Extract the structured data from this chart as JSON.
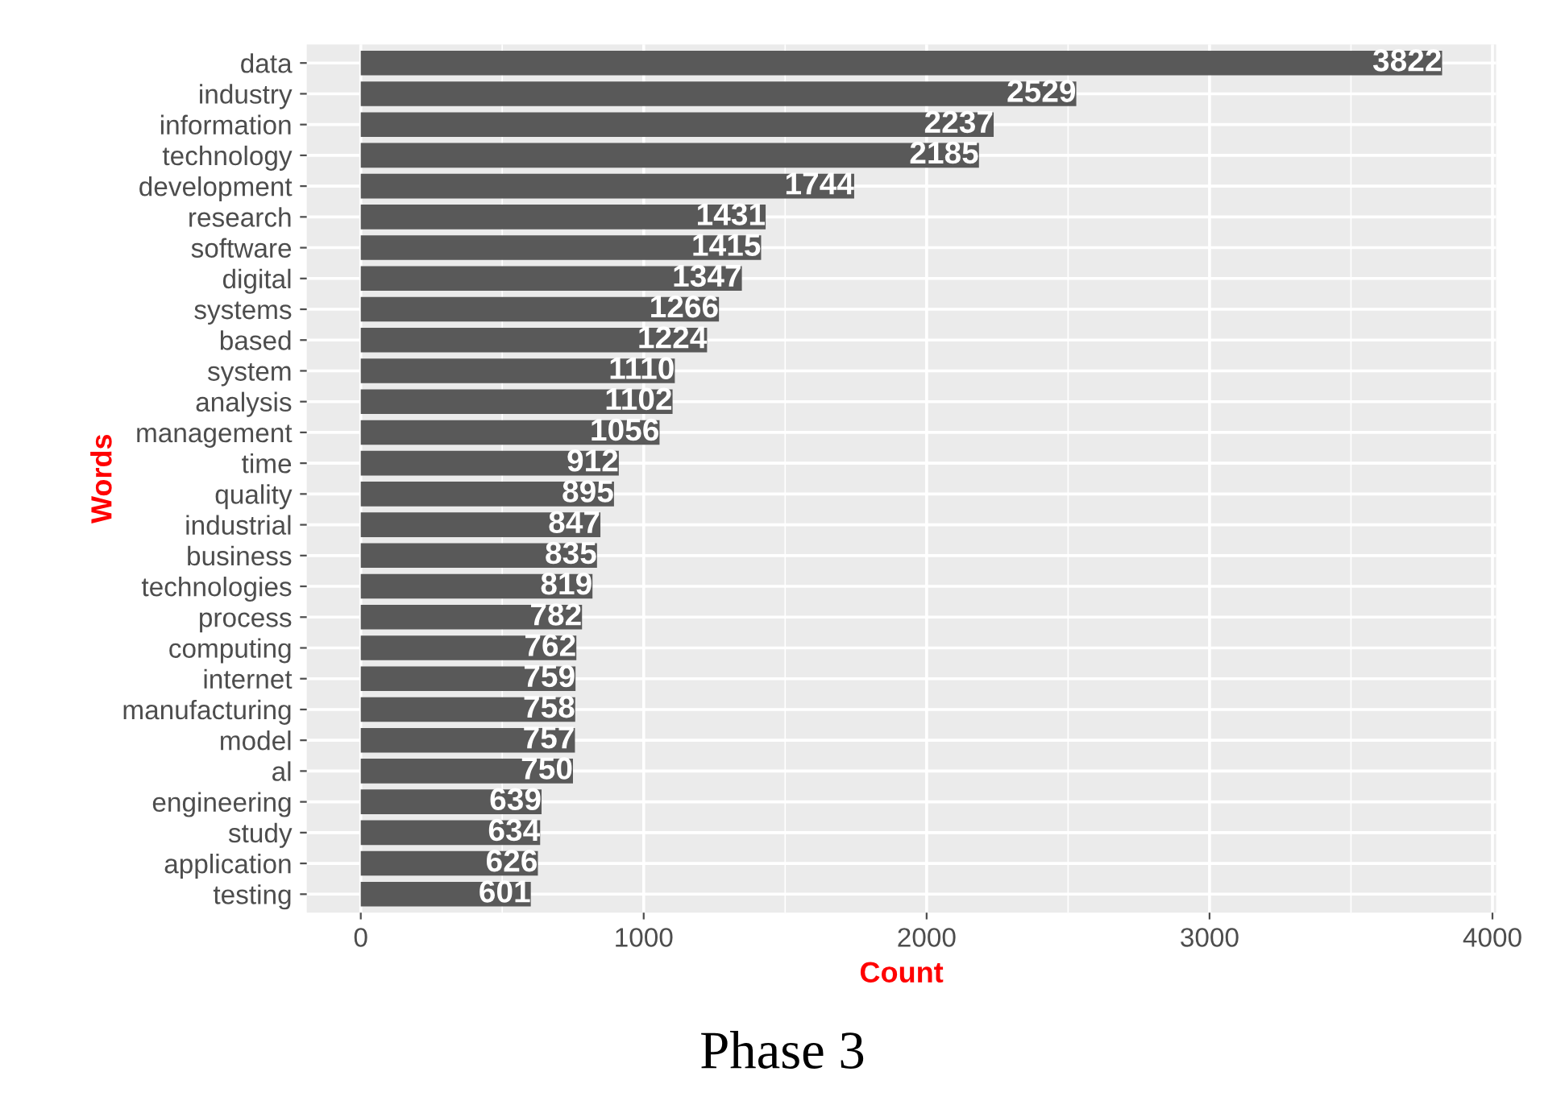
{
  "chart_data": {
    "type": "bar",
    "orientation": "horizontal",
    "xlabel": "Count",
    "ylabel": "Words",
    "categories": [
      "data",
      "industry",
      "information",
      "technology",
      "development",
      "research",
      "software",
      "digital",
      "systems",
      "based",
      "system",
      "analysis",
      "management",
      "time",
      "quality",
      "industrial",
      "business",
      "technologies",
      "process",
      "computing",
      "internet",
      "manufacturing",
      "model",
      "al",
      "engineering",
      "study",
      "application",
      "testing"
    ],
    "values": [
      3822,
      2529,
      2237,
      2185,
      1744,
      1431,
      1415,
      1347,
      1266,
      1224,
      1110,
      1102,
      1056,
      912,
      895,
      847,
      835,
      819,
      782,
      762,
      759,
      758,
      757,
      750,
      639,
      634,
      626,
      601
    ],
    "color": "#595959",
    "data_labels": true,
    "xlim": [
      -191,
      4013
    ],
    "xticks": [
      0,
      1000,
      2000,
      3000,
      4000
    ],
    "grid": true,
    "annotations": [
      "Phase 3"
    ]
  }
}
